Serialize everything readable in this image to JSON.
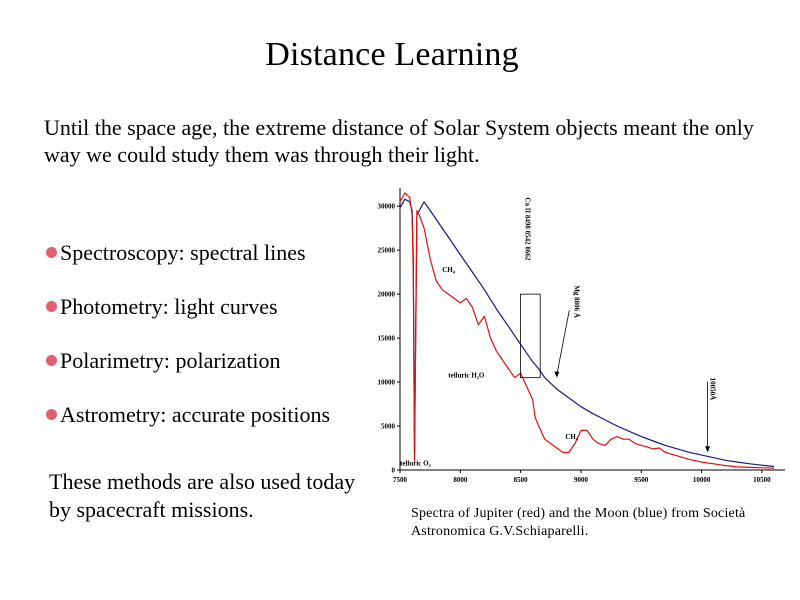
{
  "slide": {
    "title": "Distance Learning",
    "intro": "Until the space age, the extreme distance of Solar System objects meant the only way we could study them was through their light.",
    "bullets": [
      "Spectroscopy: spectral lines",
      "Photometry: light curves",
      "Polarimetry: polarization",
      "Astrometry: accurate positions"
    ],
    "footer_note": "These methods are also used today by spacecraft missions.",
    "caption": "Spectra of Jupiter (red) and the Moon (blue) from Società Astronomica G.V.Schiaparelli.",
    "bullet_color": "#e06070"
  },
  "chart_data": {
    "type": "line",
    "title": "",
    "xlabel": "",
    "ylabel": "",
    "xlim": [
      7500,
      10650
    ],
    "ylim": [
      0,
      31500
    ],
    "x_ticks": [
      "7500",
      "8000",
      "8500",
      "9000",
      "9500",
      "10000",
      "10500"
    ],
    "y_ticks": [
      "0",
      "5000",
      "10000",
      "15000",
      "20000",
      "25000",
      "30000"
    ],
    "grid": false,
    "colors": {
      "jupiter": "#dd1111",
      "moon": "#1a1a80"
    },
    "series": [
      {
        "x": [
          7500,
          7540,
          7580,
          7600,
          7610,
          7620,
          7640,
          7700,
          7750,
          7800,
          7900,
          8000,
          8100,
          8200,
          8300,
          8400,
          8500,
          8600,
          8650,
          8700,
          8800,
          8900,
          9000,
          9100,
          9200,
          9300,
          9400,
          9500,
          9600,
          9700,
          9800,
          9900,
          10000,
          10100,
          10200,
          10300,
          10400,
          10500,
          10600
        ],
        "values": [
          29800,
          30800,
          30500,
          29500,
          24000,
          2000,
          29000,
          30500,
          29500,
          28500,
          26500,
          24500,
          22500,
          20500,
          18300,
          16300,
          14300,
          12300,
          11500,
          10500,
          9200,
          8200,
          7200,
          6400,
          5700,
          5000,
          4400,
          3800,
          3300,
          2800,
          2400,
          2000,
          1700,
          1400,
          1100,
          900,
          700,
          550,
          400
        ]
      },
      {
        "x": [
          7500,
          7540,
          7580,
          7600,
          7610,
          7620,
          7640,
          7660,
          7700,
          7750,
          7800,
          7850,
          7900,
          7950,
          8000,
          8050,
          8100,
          8150,
          8200,
          8250,
          8300,
          8350,
          8400,
          8450,
          8500,
          8550,
          8600,
          8620,
          8650,
          8700,
          8750,
          8800,
          8850,
          8900,
          8950,
          9000,
          9050,
          9100,
          9150,
          9200,
          9250,
          9300,
          9350,
          9400,
          9450,
          9500,
          9550,
          9600,
          9650,
          9700,
          9750,
          9800,
          9900,
          10000,
          10100,
          10200,
          10300,
          10400,
          10500,
          10600
        ],
        "values": [
          30500,
          31500,
          31000,
          29000,
          22000,
          1000,
          29500,
          29000,
          27500,
          24000,
          21500,
          20500,
          20000,
          19500,
          19000,
          19500,
          18500,
          16500,
          17500,
          15000,
          13500,
          12500,
          11500,
          10500,
          11000,
          9500,
          8000,
          6000,
          5000,
          3500,
          3000,
          2500,
          2000,
          2000,
          3000,
          4500,
          4500,
          3500,
          3000,
          2800,
          3500,
          3800,
          3500,
          3500,
          3000,
          2800,
          2600,
          2400,
          2500,
          2000,
          1800,
          1600,
          1200,
          900,
          700,
          500,
          350,
          300,
          250,
          200
        ]
      }
    ],
    "annotations": [
      {
        "text": "CH₄",
        "x": 7850,
        "y": 22500,
        "type": "label"
      },
      {
        "text": "telluric H₂O",
        "x": 7900,
        "y": 10500,
        "type": "label"
      },
      {
        "text": "CH₄",
        "x": 8870,
        "y": 3500,
        "type": "label"
      },
      {
        "text": "telluric O₂",
        "x": 7500,
        "y": 500,
        "type": "label"
      },
      {
        "text": "Ca II 8498 8542 8662",
        "x": 8540,
        "y": 31000,
        "type": "label"
      },
      {
        "text": "Mg 8806 Å",
        "x": 8920,
        "y": 21000,
        "type": "arrow",
        "arrow_to": [
          8800,
          10500
        ]
      },
      {
        "text": "10050Å",
        "x": 10050,
        "y": 10500,
        "type": "arrow",
        "arrow_to": [
          10050,
          2000
        ]
      }
    ]
  }
}
